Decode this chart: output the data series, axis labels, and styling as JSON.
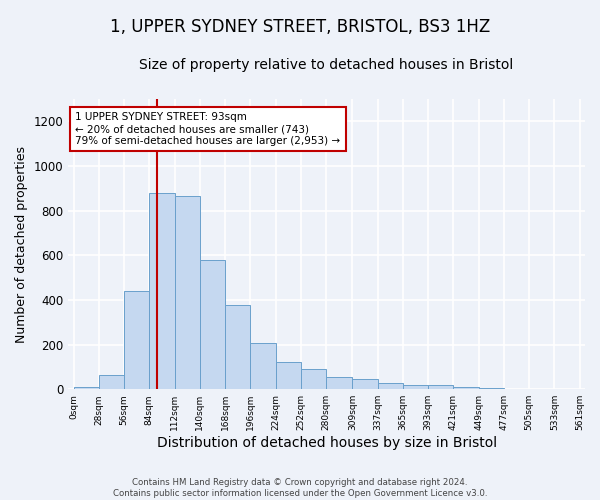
{
  "title": "1, UPPER SYDNEY STREET, BRISTOL, BS3 1HZ",
  "subtitle": "Size of property relative to detached houses in Bristol",
  "xlabel": "Distribution of detached houses by size in Bristol",
  "ylabel": "Number of detached properties",
  "footer_line1": "Contains HM Land Registry data © Crown copyright and database right 2024.",
  "footer_line2": "Contains public sector information licensed under the Open Government Licence v3.0.",
  "annotation_line1": "1 UPPER SYDNEY STREET: 93sqm",
  "annotation_line2": "← 20% of detached houses are smaller (743)",
  "annotation_line3": "79% of semi-detached houses are larger (2,953) →",
  "bar_edges": [
    0,
    28,
    56,
    84,
    112,
    140,
    168,
    196,
    224,
    252,
    280,
    309,
    337,
    365,
    393,
    421,
    449,
    477,
    505,
    533,
    561
  ],
  "bar_heights": [
    10,
    65,
    440,
    878,
    865,
    578,
    378,
    205,
    120,
    90,
    55,
    45,
    28,
    20,
    18,
    10,
    5,
    3,
    3,
    2
  ],
  "bar_color": "#c5d8f0",
  "bar_edge_color": "#6aa0cc",
  "vline_x": 93,
  "vline_color": "#c00000",
  "annotation_box_color": "#c00000",
  "ylim": [
    0,
    1300
  ],
  "yticks": [
    0,
    200,
    400,
    600,
    800,
    1000,
    1200
  ],
  "background_color": "#eef2f9",
  "plot_bg_color": "#eef2f9",
  "grid_color": "#ffffff",
  "title_fontsize": 12,
  "subtitle_fontsize": 10,
  "xlabel_fontsize": 10,
  "ylabel_fontsize": 9
}
